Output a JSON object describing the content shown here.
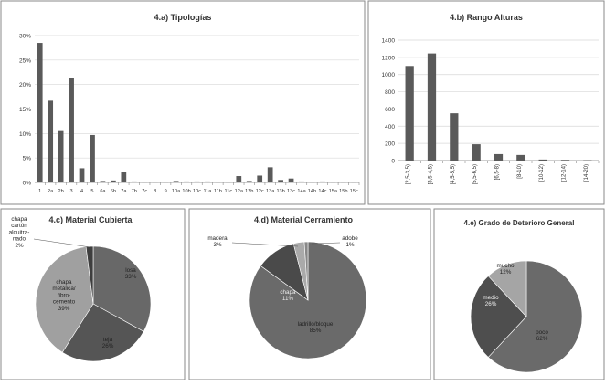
{
  "chart_data": [
    {
      "type": "bar",
      "title": "4.a) Tipologías",
      "categories": [
        "1",
        "2a",
        "2b",
        "3",
        "4",
        "5",
        "6a",
        "6b",
        "7a",
        "7b",
        "7c",
        "8",
        "9",
        "10a",
        "10b",
        "10c",
        "11a",
        "11b",
        "11c",
        "12a",
        "12b",
        "12c",
        "13a",
        "13b",
        "13c",
        "14a",
        "14b",
        "14c",
        "15a",
        "15b",
        "15c"
      ],
      "values": [
        28.5,
        16.7,
        10.5,
        21.4,
        2.9,
        9.7,
        0.3,
        0.4,
        2.2,
        0.2,
        0.1,
        0.1,
        0.1,
        0.3,
        0.2,
        0.2,
        0.2,
        0.1,
        0.1,
        1.3,
        0.3,
        1.4,
        3.1,
        0.5,
        0.8,
        0.2,
        0.1,
        0.2,
        0.1,
        0.1,
        0.1
      ],
      "yticks": [
        "0%",
        "5%",
        "10%",
        "15%",
        "20%",
        "25%",
        "30%"
      ],
      "ylim": [
        0,
        30
      ]
    },
    {
      "type": "bar",
      "title": "4.b) Rango Alturas",
      "categories": [
        "[2,5-3,5)",
        "[3,5-4,5)",
        "[4,5-5,5)",
        "[5,5-6,5)",
        "[6,5-8)",
        "[8-10)",
        "[10-12)",
        "[12-14)",
        "[14-20)"
      ],
      "values": [
        1100,
        1245,
        550,
        190,
        75,
        65,
        12,
        8,
        5
      ],
      "yticks": [
        "0",
        "200",
        "400",
        "600",
        "800",
        "1000",
        "1200",
        "1400"
      ],
      "ylim": [
        0,
        1400
      ]
    },
    {
      "type": "pie",
      "title": "4.c)  Material Cubierta",
      "slices": [
        {
          "label": "losa",
          "pct": "33%",
          "value": 33,
          "color": "#686868"
        },
        {
          "label": "teja",
          "pct": "26%",
          "value": 26,
          "color": "#555555"
        },
        {
          "label": "chapa\nmetálica/\nfibro-\ncemento",
          "pct": "39%",
          "value": 39,
          "color": "#a0a0a0"
        },
        {
          "label": "chapa\ncartón\nalquitra-\nnado",
          "pct": "2%",
          "value": 2,
          "color": "#3e3e3e"
        }
      ]
    },
    {
      "type": "pie",
      "title": "4.d)  Material Cerramiento",
      "slices": [
        {
          "label": "ladrillo/bloque",
          "pct": "85%",
          "value": 85,
          "color": "#6a6a6a"
        },
        {
          "label": "chapa",
          "pct": "11%",
          "value": 11,
          "color": "#4a4a4a"
        },
        {
          "label": "madera",
          "pct": "3%",
          "value": 3,
          "color": "#aaaaaa"
        },
        {
          "label": "adobe",
          "pct": "1%",
          "value": 1,
          "color": "#888888"
        }
      ]
    },
    {
      "type": "pie",
      "title": "4.e) Grado de Deterioro General",
      "slices": [
        {
          "label": "poco",
          "pct": "62%",
          "value": 62,
          "color": "#6a6a6a"
        },
        {
          "label": "medio",
          "pct": "26%",
          "value": 26,
          "color": "#4e4e4e"
        },
        {
          "label": "mucho",
          "pct": "12%",
          "value": 12,
          "color": "#a5a5a5"
        }
      ]
    }
  ]
}
